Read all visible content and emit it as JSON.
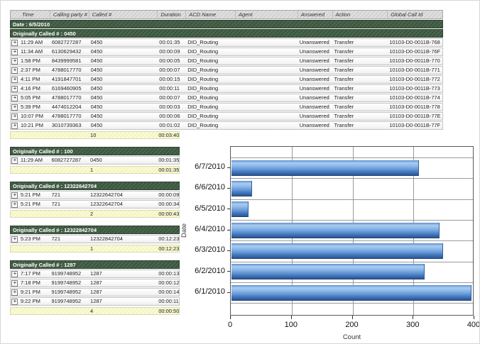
{
  "report": {
    "columns": [
      {
        "key": "expand",
        "label": ""
      },
      {
        "key": "time",
        "label": "Time"
      },
      {
        "key": "calling",
        "label": "Calling party #"
      },
      {
        "key": "called",
        "label": "Called #"
      },
      {
        "key": "duration",
        "label": "Duration"
      },
      {
        "key": "acd",
        "label": "ACD Name"
      },
      {
        "key": "agent",
        "label": "Agent"
      },
      {
        "key": "answered",
        "label": "Answered"
      },
      {
        "key": "action",
        "label": "Action"
      },
      {
        "key": "gcid",
        "label": "Global Call Id"
      }
    ],
    "date_band": "Date : 6/5/2010",
    "expand_glyph": "+",
    "groups": [
      {
        "header": "Originally Called # : 0450",
        "wide": true,
        "rows": [
          {
            "time": "11:29 AM",
            "calling": "6082727287",
            "called": "0450",
            "duration": "00:01:35",
            "acd": "DID_Routing",
            "agent": "",
            "answered": "Unanswered",
            "action": "Transfer",
            "gcid": "10103-D0-0011B-768"
          },
          {
            "time": "11:34 AM",
            "calling": "6130629432",
            "called": "0450",
            "duration": "00:00:09",
            "acd": "DID_Routing",
            "agent": "",
            "answered": "Unanswered",
            "action": "Transfer",
            "gcid": "10103-D0-0011B-76F"
          },
          {
            "time": "1:58 PM",
            "calling": "8439999581",
            "called": "0450",
            "duration": "00:00:05",
            "acd": "DID_Routing",
            "agent": "",
            "answered": "Unanswered",
            "action": "Transfer",
            "gcid": "10103-D0-0011B-770"
          },
          {
            "time": "2:37 PM",
            "calling": "4788017770",
            "called": "0450",
            "duration": "00:00:07",
            "acd": "DID_Routing",
            "agent": "",
            "answered": "Unanswered",
            "action": "Transfer",
            "gcid": "10103-D0-0011B-771"
          },
          {
            "time": "4:11 PM",
            "calling": "4191847701",
            "called": "0450",
            "duration": "00:00:15",
            "acd": "DID_Routing",
            "agent": "",
            "answered": "Unanswered",
            "action": "Transfer",
            "gcid": "10103-D0-0011B-772"
          },
          {
            "time": "4:16 PM",
            "calling": "6169460905",
            "called": "0450",
            "duration": "00:00:11",
            "acd": "DID_Routing",
            "agent": "",
            "answered": "Unanswered",
            "action": "Transfer",
            "gcid": "10103-D0-0011B-773"
          },
          {
            "time": "5:05 PM",
            "calling": "4788017770",
            "called": "0450",
            "duration": "00:00:07",
            "acd": "DID_Routing",
            "agent": "",
            "answered": "Unanswered",
            "action": "Transfer",
            "gcid": "10103-D0-0011B-774"
          },
          {
            "time": "5:39 PM",
            "calling": "4474012204",
            "called": "0450",
            "duration": "00:00:03",
            "acd": "DID_Routing",
            "agent": "",
            "answered": "Unanswered",
            "action": "Transfer",
            "gcid": "10103-D0-0011B-778"
          },
          {
            "time": "10:07 PM",
            "calling": "4788017770",
            "called": "0450",
            "duration": "00:00:06",
            "acd": "DID_Routing",
            "agent": "",
            "answered": "Unanswered",
            "action": "Transfer",
            "gcid": "10103-D0-0011B-77E"
          },
          {
            "time": "10:21 PM",
            "calling": "3010739363",
            "called": "0450",
            "duration": "00:01:02",
            "acd": "DID_Routing",
            "agent": "",
            "answered": "Unanswered",
            "action": "Transfer",
            "gcid": "10103-D0-0011B-77F"
          }
        ],
        "summary": {
          "count": "10",
          "total_duration": "00:03:40"
        }
      },
      {
        "header": "Originally Called # : 100",
        "wide": false,
        "rows": [
          {
            "time": "11:29 AM",
            "calling": "6082727287",
            "called": "0450",
            "duration": "00:01:35"
          }
        ],
        "summary": {
          "count": "1",
          "total_duration": "00:01:35"
        }
      },
      {
        "header": "Originally Called # : 12322642704",
        "wide": false,
        "rows": [
          {
            "time": "5:21 PM",
            "calling": "721",
            "called": "12322642704",
            "duration": "00:00:09"
          },
          {
            "time": "5:21 PM",
            "calling": "721",
            "called": "12322642704",
            "duration": "00:00:34"
          }
        ],
        "summary": {
          "count": "2",
          "total_duration": "00:00:43"
        }
      },
      {
        "header": "Originally Called # : 12322842704",
        "wide": false,
        "rows": [
          {
            "time": "5:23 PM",
            "calling": "721",
            "called": "12322842704",
            "duration": "00:12:23"
          }
        ],
        "summary": {
          "count": "1",
          "total_duration": "00:12:23"
        }
      },
      {
        "header": "Originally Called # : 1287",
        "wide": false,
        "rows": [
          {
            "time": "7:17 PM",
            "calling": "9199748952",
            "called": "1287",
            "duration": "00:00:13"
          },
          {
            "time": "7:18 PM",
            "calling": "9199748952",
            "called": "1287",
            "duration": "00:00:12"
          },
          {
            "time": "9:21 PM",
            "calling": "9199748952",
            "called": "1287",
            "duration": "00:00:14"
          },
          {
            "time": "9:22 PM",
            "calling": "9199748952",
            "called": "1287",
            "duration": "00:00:11"
          }
        ],
        "summary": {
          "count": "4",
          "total_duration": "00:00:50"
        }
      }
    ]
  },
  "chart_data": {
    "type": "bar",
    "orientation": "horizontal",
    "title": "",
    "categories_top_to_bottom": [
      "6/7/2010",
      "6/6/2010",
      "6/5/2010",
      "6/4/2010",
      "6/3/2010",
      "6/2/2010",
      "6/1/2010"
    ],
    "values": [
      308,
      34,
      28,
      342,
      348,
      317,
      394
    ],
    "xlabel": "Count",
    "ylabel": "Date",
    "xlim": [
      0,
      400
    ],
    "xticks": [
      0,
      100,
      200,
      300,
      400
    ],
    "grid": true,
    "legend": "none",
    "bar_color_light": "#a9cdf2",
    "bar_color_dark": "#2b5795"
  }
}
